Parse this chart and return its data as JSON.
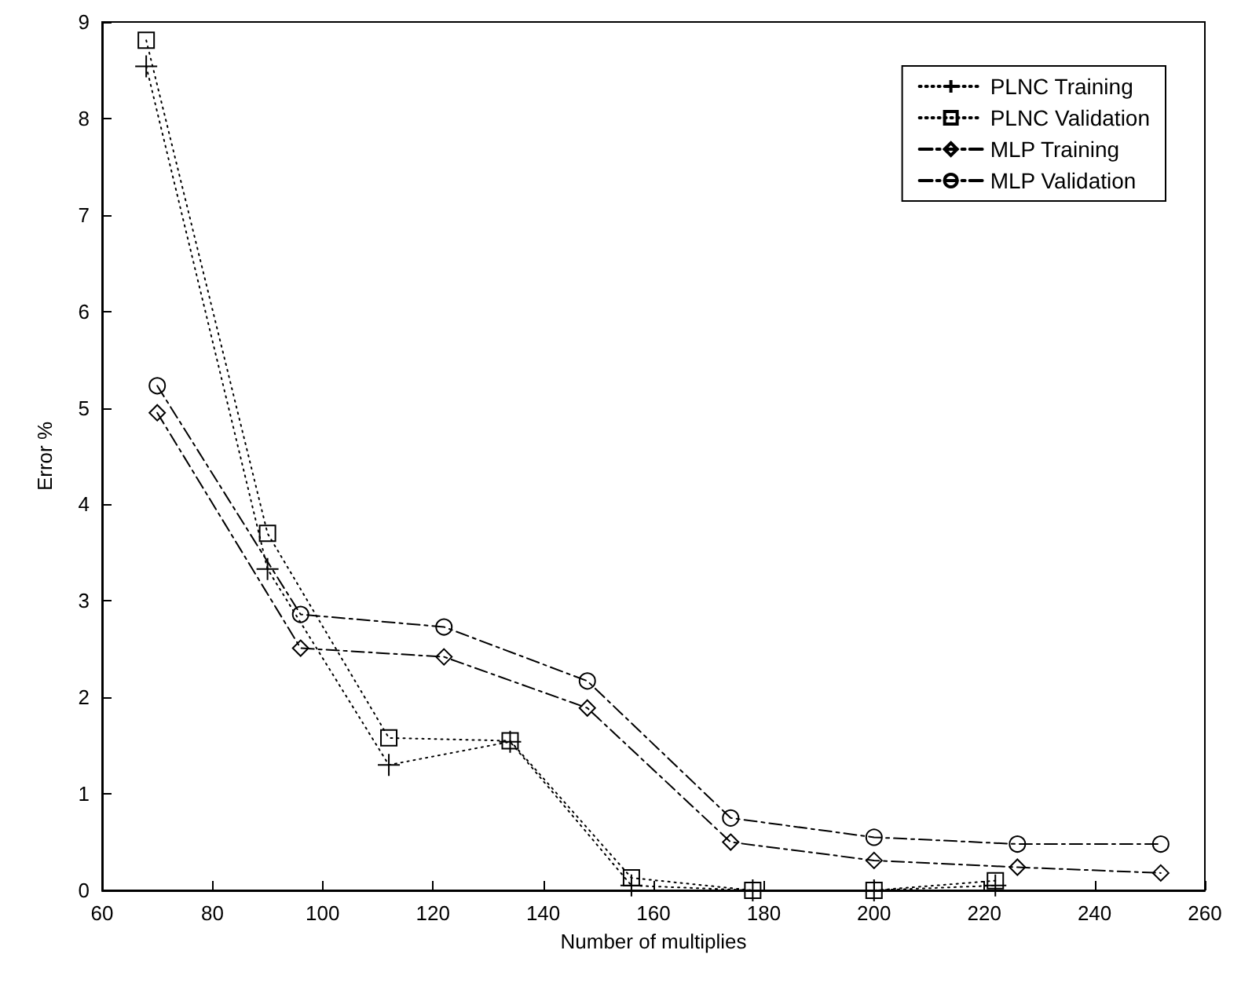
{
  "chart_data": {
    "type": "line",
    "xlabel": "Number of multiplies",
    "ylabel": "Error %",
    "xlim": [
      60,
      260
    ],
    "xticks": [
      60,
      80,
      100,
      120,
      140,
      160,
      180,
      200,
      220,
      240,
      260
    ],
    "ylim": [
      0,
      9
    ],
    "yticks": [
      0,
      1,
      2,
      3,
      4,
      5,
      6,
      7,
      8,
      9
    ],
    "grid": false,
    "legend": "top right",
    "series": [
      {
        "name": "PLNC Training",
        "color": "#000000",
        "marker": "cross",
        "line_style": "dotted",
        "x": [
          68,
          90,
          112,
          134,
          156,
          178,
          200,
          222
        ],
        "values": [
          8.54,
          3.33,
          1.3,
          1.54,
          0.05,
          0,
          0,
          0.05
        ]
      },
      {
        "name": "PLNC Validation",
        "color": "#000000",
        "marker": "square",
        "line_style": "dotted",
        "x": [
          68,
          90,
          112,
          134,
          156,
          178,
          200,
          222
        ],
        "values": [
          8.81,
          3.7,
          1.58,
          1.55,
          0.13,
          0,
          0,
          0.1
        ]
      },
      {
        "name": "MLP Training",
        "color": "#000000",
        "marker": "diamond",
        "line_style": "dashed",
        "x": [
          70,
          96,
          122,
          148,
          174,
          200,
          226,
          252
        ],
        "values": [
          4.95,
          2.51,
          2.42,
          1.89,
          0.5,
          0.31,
          0.24,
          0.18
        ]
      },
      {
        "name": "MLP Validation",
        "color": "#000000",
        "marker": "circle",
        "line_style": "dashed",
        "x": [
          70,
          96,
          122,
          148,
          174,
          200,
          226,
          252
        ],
        "values": [
          5.23,
          2.86,
          2.73,
          2.17,
          0.75,
          0.55,
          0.48,
          0.48
        ]
      }
    ]
  }
}
